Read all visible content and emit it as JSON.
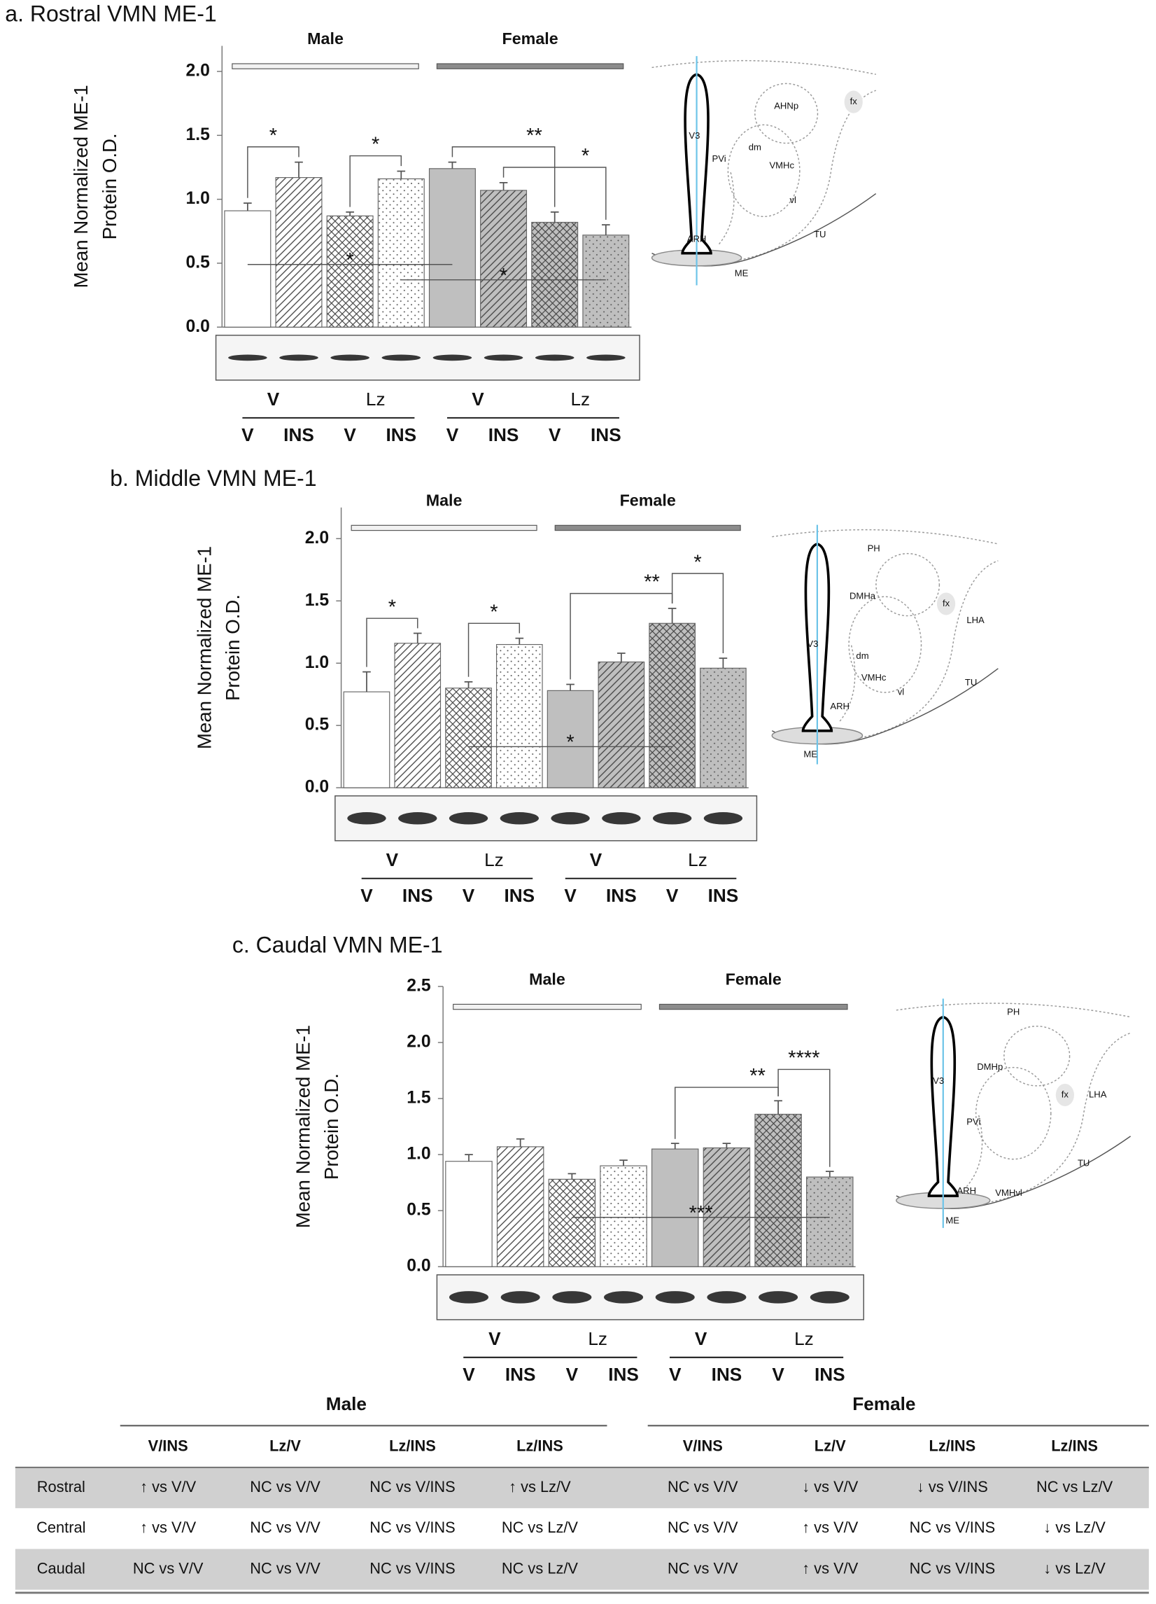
{
  "chart_data": [
    {
      "type": "bar",
      "title": "a. Rostral VMN ME-1",
      "y_label": [
        "Mean Normalized ME-1",
        "Protein O.D."
      ],
      "groups": [
        {
          "name": "Male",
          "color": "#f2f2f2"
        },
        {
          "name": "Female",
          "color": "#8c8c8c"
        }
      ],
      "treatments": [
        "V",
        "Lz",
        "V",
        "Lz"
      ],
      "categories": [
        "V",
        "INS",
        "V",
        "INS",
        "V",
        "INS",
        "V",
        "INS"
      ],
      "values": [
        0.91,
        1.17,
        0.87,
        1.16,
        1.24,
        1.07,
        0.82,
        0.72
      ],
      "errors": [
        0.06,
        0.12,
        0.03,
        0.06,
        0.05,
        0.06,
        0.08,
        0.08
      ],
      "colors": [
        "#ffffff",
        "#ffffff",
        "#ffffff",
        "#ffffff",
        "#bfbfbf",
        "#bfbfbf",
        "#bfbfbf",
        "#bfbfbf"
      ],
      "patterns": [
        "solid",
        "diagonal",
        "crosshatch",
        "dots",
        "solid",
        "diagonal",
        "crosshatch",
        "dots"
      ],
      "ylim": [
        0,
        2.2
      ],
      "yticks": [
        {
          "value": 0,
          "label": "0.0"
        },
        0.5,
        {
          "value": 1,
          "label": "1.0"
        },
        1.5,
        {
          "value": 2,
          "label": "2.0"
        }
      ],
      "brackets": [
        {
          "text": "*",
          "from": 0,
          "to": 1
        },
        {
          "text": "*",
          "from": 2,
          "to": 3
        },
        {
          "text": "**",
          "from": 4,
          "to": 6
        },
        {
          "text": "*",
          "from": 5,
          "to": 7
        }
      ],
      "lines": [
        {
          "text": "*",
          "from": 0,
          "to": 4,
          "y": 0.49
        },
        {
          "text": "*",
          "from": 3,
          "to": 7,
          "y": 0.37
        }
      ],
      "diagram_labels": [
        "V3",
        "ARH",
        "ME",
        "dm",
        "VMHc",
        "vl",
        "TU",
        "AHNp",
        "fx",
        "PVi"
      ]
    },
    {
      "type": "bar",
      "title": "b. Middle VMN ME-1",
      "y_label": [
        "Mean Normalized ME-1",
        "Protein O.D."
      ],
      "groups": [
        {
          "name": "Male",
          "color": "#f2f2f2"
        },
        {
          "name": "Female",
          "color": "#8c8c8c"
        }
      ],
      "treatments": [
        "V",
        "Lz",
        "V",
        "Lz"
      ],
      "categories": [
        "V",
        "INS",
        "V",
        "INS",
        "V",
        "INS",
        "V",
        "INS"
      ],
      "values": [
        0.77,
        1.16,
        0.8,
        1.15,
        0.78,
        1.01,
        1.32,
        0.96
      ],
      "errors": [
        0.16,
        0.08,
        0.05,
        0.05,
        0.05,
        0.07,
        0.12,
        0.08
      ],
      "colors": [
        "#ffffff",
        "#ffffff",
        "#ffffff",
        "#ffffff",
        "#bfbfbf",
        "#bfbfbf",
        "#bfbfbf",
        "#bfbfbf"
      ],
      "patterns": [
        "solid",
        "diagonal",
        "crosshatch",
        "dots",
        "solid",
        "diagonal",
        "crosshatch",
        "dots"
      ],
      "ylim": [
        0,
        2.25
      ],
      "yticks": [
        {
          "value": 0,
          "label": "0.0"
        },
        0.5,
        {
          "value": 1,
          "label": "1.0"
        },
        1.5,
        {
          "value": 2,
          "label": "2.0"
        }
      ],
      "brackets": [
        {
          "text": "*",
          "from": 0,
          "to": 1
        },
        {
          "text": "*",
          "from": 2,
          "to": 3
        },
        {
          "text": "**",
          "from": 4,
          "to": 6
        },
        {
          "text": "*",
          "from": 6,
          "to": 7
        }
      ],
      "lines": [
        {
          "text": "*",
          "from": 2,
          "to": 6,
          "y": 0.33
        }
      ],
      "diagram_labels": [
        "V3",
        "ARH",
        "ME",
        "dm",
        "VMHc",
        "vl",
        "TU",
        "PH",
        "DMHa",
        "fx",
        "LHA"
      ]
    },
    {
      "type": "bar",
      "title": "c. Caudal VMN ME-1",
      "y_label": [
        "Mean Normalized ME-1",
        "Protein O.D."
      ],
      "groups": [
        {
          "name": "Male",
          "color": "#f2f2f2"
        },
        {
          "name": "Female",
          "color": "#8c8c8c"
        }
      ],
      "treatments": [
        "V",
        "Lz",
        "V",
        "Lz"
      ],
      "categories": [
        "V",
        "INS",
        "V",
        "INS",
        "V",
        "INS",
        "V",
        "INS"
      ],
      "values": [
        0.94,
        1.07,
        0.78,
        0.9,
        1.05,
        1.06,
        1.36,
        0.8
      ],
      "errors": [
        0.06,
        0.07,
        0.05,
        0.05,
        0.05,
        0.04,
        0.12,
        0.05
      ],
      "colors": [
        "#ffffff",
        "#ffffff",
        "#ffffff",
        "#ffffff",
        "#bfbfbf",
        "#bfbfbf",
        "#bfbfbf",
        "#bfbfbf"
      ],
      "patterns": [
        "solid",
        "diagonal",
        "crosshatch",
        "dots",
        "solid",
        "diagonal",
        "crosshatch",
        "dots"
      ],
      "ylim": [
        0,
        2.5
      ],
      "yticks": [
        {
          "value": 0,
          "label": "0.0"
        },
        0.5,
        {
          "value": 1,
          "label": "1.0"
        },
        1.5,
        {
          "value": 2,
          "label": "2.0"
        },
        2.5
      ],
      "brackets": [
        {
          "text": "**",
          "from": 4,
          "to": 6
        },
        {
          "text": "****",
          "from": 6,
          "to": 7
        }
      ],
      "lines": [
        {
          "text": "***",
          "from": 2,
          "to": 7,
          "y": 0.44
        }
      ],
      "diagram_labels": [
        "V3",
        "ARH",
        "ME",
        "PH",
        "DMHp",
        "fx",
        "LHA",
        "PVi",
        "VMHvl",
        "TU"
      ]
    }
  ],
  "table": {
    "groups": [
      "Male",
      "Female"
    ],
    "columns": [
      "V/INS",
      "Lz/V",
      "Lz/INS",
      "Lz/INS",
      "V/INS",
      "Lz/V",
      "Lz/INS",
      "Lz/INS"
    ],
    "rows": [
      [
        "Rostral",
        "↑ vs V/V",
        "NC vs V/V",
        "NC vs V/INS",
        "↑ vs Lz/V",
        "NC vs V/V",
        "↓ vs V/V",
        "↓ vs V/INS",
        "NC vs Lz/V"
      ],
      [
        "Central",
        "↑ vs V/V",
        "NC vs V/V",
        "NC vs V/INS",
        "NC vs Lz/V",
        "NC vs V/V",
        "↑ vs V/V",
        "NC vs V/INS",
        "↓ vs Lz/V"
      ],
      [
        "Caudal",
        "NC vs V/V",
        "NC vs V/V",
        "NC vs V/INS",
        "NC vs Lz/V",
        "NC vs V/V",
        "↑ vs V/V",
        "NC vs V/INS",
        "↓ vs Lz/V"
      ]
    ]
  }
}
